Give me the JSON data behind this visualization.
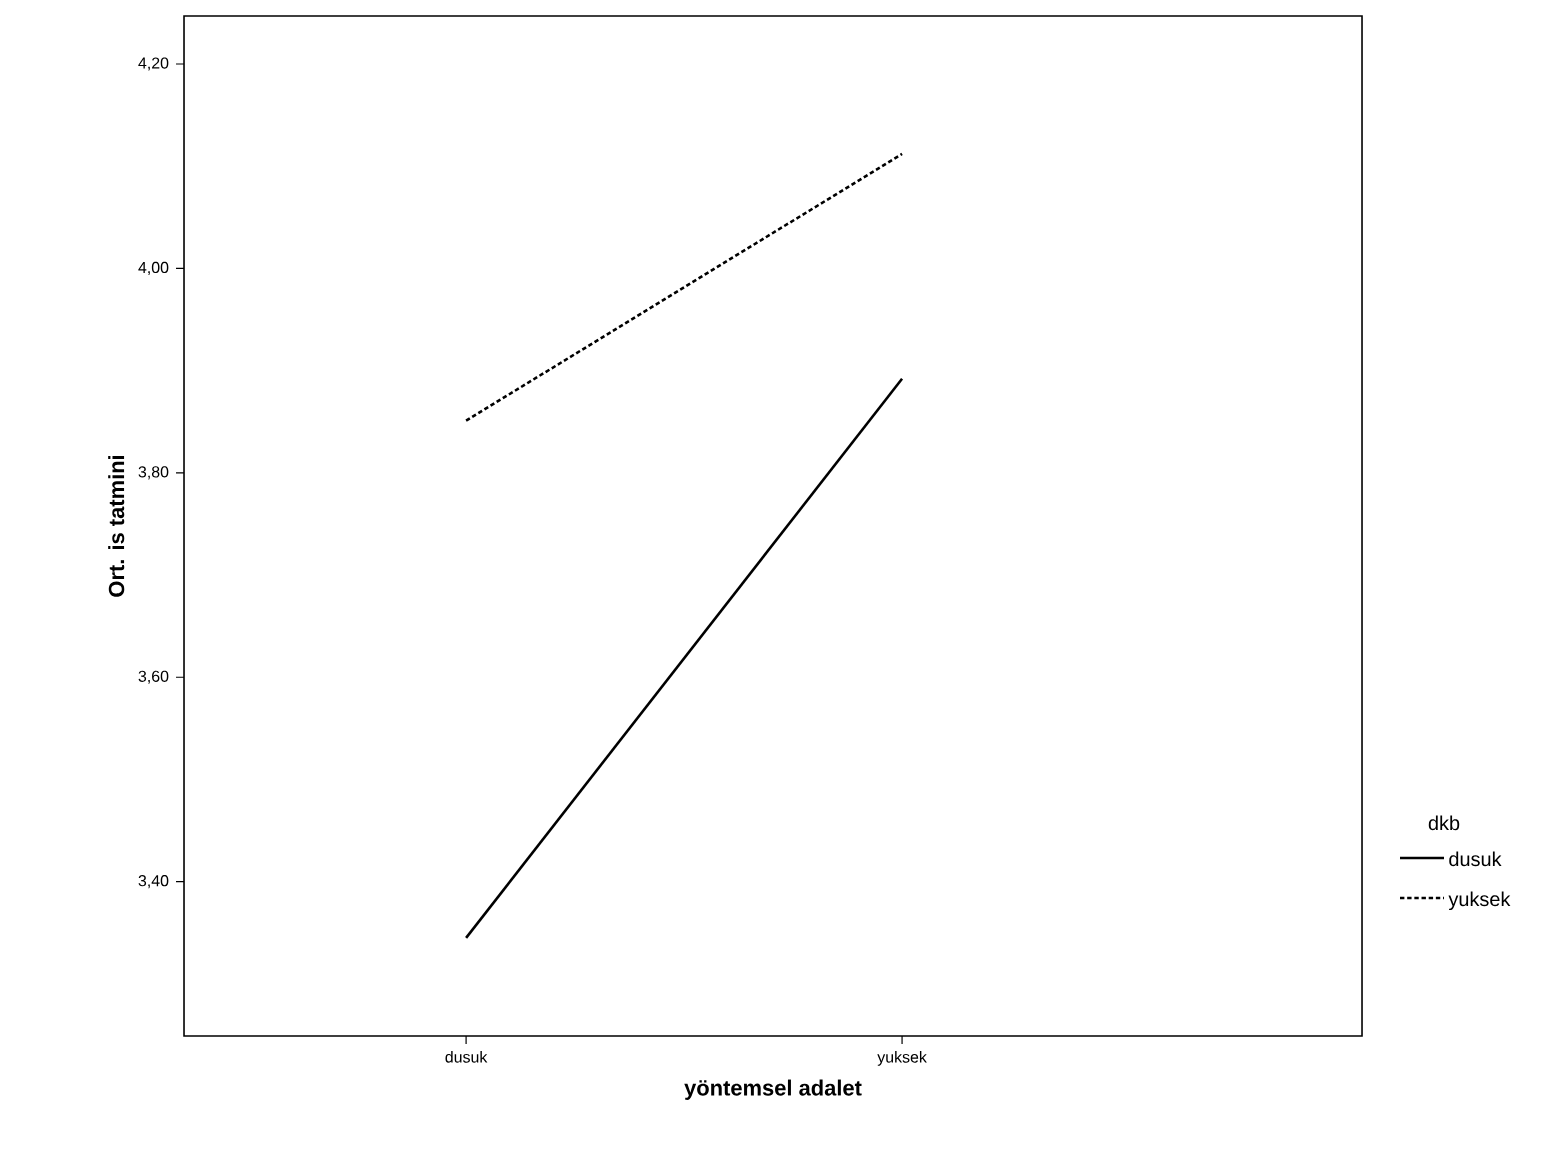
{
  "chart_data": {
    "type": "line",
    "xlabel": "yöntemsel adalet",
    "ylabel": "Ort. is tatmini",
    "legend_title": "dkb",
    "legend": "right",
    "categories": [
      "dusuk",
      "yuksek"
    ],
    "ylim": [
      3.249,
      4.247
    ],
    "yticks": [
      {
        "value": 3.4,
        "label": "3,40"
      },
      {
        "value": 3.6,
        "label": "3,60"
      },
      {
        "value": 3.8,
        "label": "3,80"
      },
      {
        "value": 4.0,
        "label": "4,00"
      },
      {
        "value": 4.2,
        "label": "4,20"
      }
    ],
    "grid": false,
    "series": [
      {
        "name": "dusuk",
        "color": "#000000",
        "line_style": "solid",
        "values": [
          3.345,
          3.892
        ]
      },
      {
        "name": "yuksek",
        "color": "#000000",
        "line_style": "dotted",
        "values": [
          3.851,
          4.112
        ]
      }
    ]
  }
}
